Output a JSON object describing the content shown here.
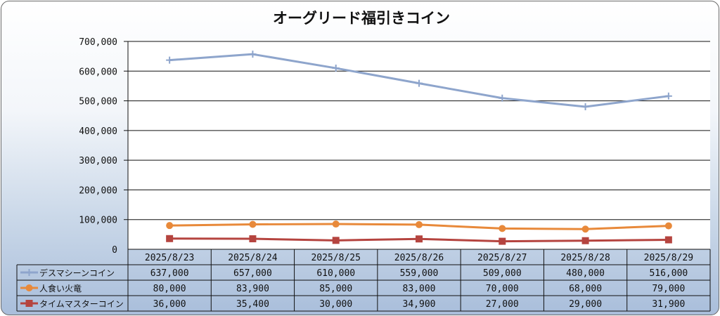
{
  "chart_data": {
    "type": "line",
    "title": "オーグリード福引きコイン",
    "xlabel": "",
    "ylabel": "",
    "categories": [
      "2025/8/23",
      "2025/8/24",
      "2025/8/25",
      "2025/8/26",
      "2025/8/27",
      "2025/8/28",
      "2025/8/29"
    ],
    "ylim": [
      0,
      700000
    ],
    "yticks": [
      0,
      100000,
      200000,
      300000,
      400000,
      500000,
      600000,
      700000
    ],
    "ytick_labels": [
      "0",
      "100,000",
      "200,000",
      "300,000",
      "400,000",
      "500,000",
      "600,000",
      "700,000"
    ],
    "grid": true,
    "legend": "data-table-bottom",
    "series": [
      {
        "name": "デスマシーンコイン",
        "values": [
          637000,
          657000,
          610000,
          559000,
          509000,
          480000,
          516000
        ],
        "labels": [
          "637,000",
          "657,000",
          "610,000",
          "559,000",
          "509,000",
          "480,000",
          "516,000"
        ],
        "color": "#8ea5cc",
        "marker": "plus"
      },
      {
        "name": "人食い火竜",
        "values": [
          80000,
          83900,
          85000,
          83000,
          70000,
          68000,
          79000
        ],
        "labels": [
          "80,000",
          "83,900",
          "85,000",
          "83,000",
          "70,000",
          "68,000",
          "79,000"
        ],
        "color": "#e8893a",
        "marker": "circle"
      },
      {
        "name": "タイムマスターコイン",
        "values": [
          36000,
          35400,
          30000,
          34900,
          27000,
          29000,
          31900
        ],
        "labels": [
          "36,000",
          "35,400",
          "30,000",
          "34,900",
          "27,000",
          "29,000",
          "31,900"
        ],
        "color": "#b5443f",
        "marker": "square"
      }
    ]
  }
}
